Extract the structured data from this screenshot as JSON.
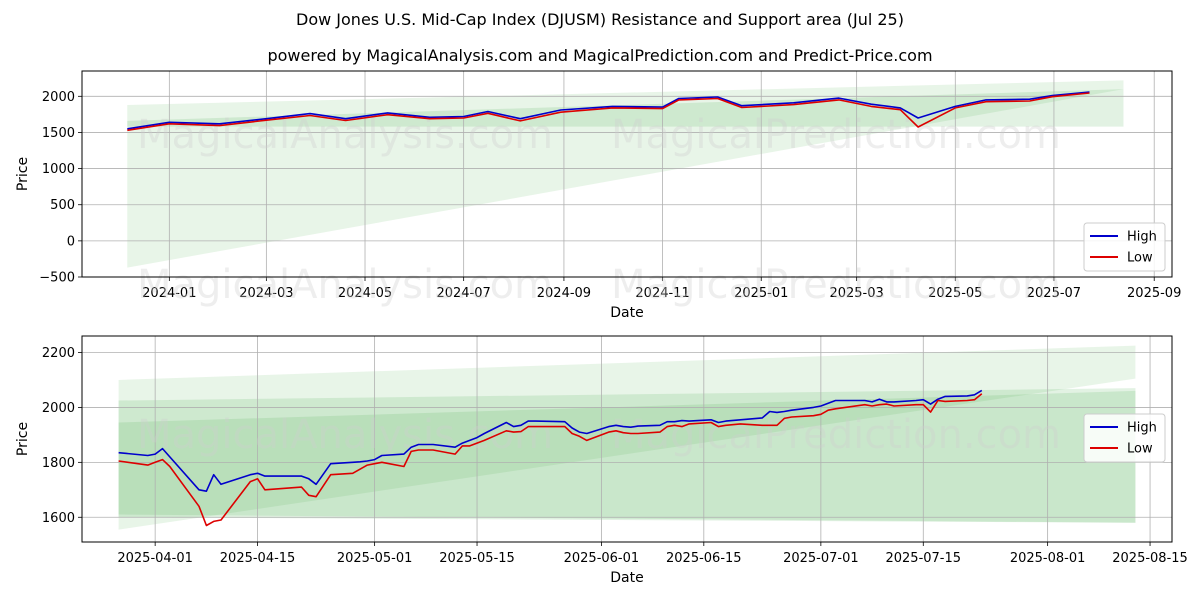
{
  "title": "Dow Jones U.S. Mid-Cap Index (DJUSM) Resistance and Support area (Jul 25)",
  "subtitle": "powered by MagicalAnalysis.com and MagicalPrediction.com and Predict-Price.com",
  "watermark": [
    "MagicalAnalysis.com",
    "MagicalPrediction.com"
  ],
  "colors": {
    "high": "#0000cc",
    "low": "#dd0000",
    "band": "#4caf50"
  },
  "chart_data": [
    {
      "type": "line",
      "xlabel": "Date",
      "ylabel": "Price",
      "x_ticks": [
        "2024-01",
        "2024-03",
        "2024-05",
        "2024-07",
        "2024-09",
        "2024-11",
        "2025-01",
        "2025-03",
        "2025-05",
        "2025-07",
        "2025-09"
      ],
      "y_ticks": [
        "−500",
        "0",
        "500",
        "1000",
        "1500",
        "2000"
      ],
      "ylim": [
        -500,
        2350
      ],
      "xlim": [
        "2023-11-08",
        "2025-09-12"
      ],
      "legend": "bottom-right",
      "grid": true,
      "bands": [
        {
          "x": [
            "2023-12-06",
            "2025-08-13"
          ],
          "upper": [
            1880,
            2220
          ],
          "lower": [
            -370,
            2100
          ]
        },
        {
          "x": [
            "2023-12-06",
            "2025-08-13"
          ],
          "upper": [
            1660,
            2100
          ],
          "lower": [
            1580,
            1580
          ]
        }
      ],
      "series": [
        {
          "name": "High",
          "x": [
            "2023-12-06",
            "2024-01-01",
            "2024-02-01",
            "2024-03-01",
            "2024-03-28",
            "2024-04-19",
            "2024-05-15",
            "2024-06-10",
            "2024-07-01",
            "2024-07-16",
            "2024-08-05",
            "2024-08-30",
            "2024-10-01",
            "2024-11-01",
            "2024-11-11",
            "2024-12-05",
            "2024-12-20",
            "2025-01-21",
            "2025-02-18",
            "2025-03-10",
            "2025-03-28",
            "2025-04-08",
            "2025-05-01",
            "2025-05-20",
            "2025-06-16",
            "2025-06-30",
            "2025-07-23"
          ],
          "values": [
            1550,
            1640,
            1620,
            1690,
            1760,
            1690,
            1770,
            1710,
            1720,
            1790,
            1690,
            1810,
            1860,
            1850,
            1970,
            1990,
            1870,
            1910,
            1975,
            1890,
            1840,
            1700,
            1860,
            1950,
            1960,
            2010,
            2060
          ]
        },
        {
          "name": "Low",
          "x": [
            "2023-12-06",
            "2024-01-01",
            "2024-02-01",
            "2024-03-01",
            "2024-03-28",
            "2024-04-19",
            "2024-05-15",
            "2024-06-10",
            "2024-07-01",
            "2024-07-16",
            "2024-08-05",
            "2024-08-30",
            "2024-10-01",
            "2024-11-01",
            "2024-11-11",
            "2024-12-05",
            "2024-12-20",
            "2025-01-21",
            "2025-02-18",
            "2025-03-10",
            "2025-03-28",
            "2025-04-08",
            "2025-05-01",
            "2025-05-20",
            "2025-06-16",
            "2025-06-30",
            "2025-07-23"
          ],
          "values": [
            1530,
            1620,
            1595,
            1670,
            1735,
            1665,
            1745,
            1690,
            1700,
            1765,
            1660,
            1780,
            1840,
            1830,
            1950,
            1970,
            1845,
            1885,
            1950,
            1860,
            1815,
            1575,
            1840,
            1925,
            1935,
            1995,
            2045
          ]
        }
      ]
    },
    {
      "type": "line",
      "xlabel": "Date",
      "ylabel": "Price",
      "x_ticks": [
        "2025-04-01",
        "2025-04-15",
        "2025-05-01",
        "2025-05-15",
        "2025-06-01",
        "2025-06-15",
        "2025-07-01",
        "2025-07-15",
        "2025-08-01",
        "2025-08-15"
      ],
      "y_ticks": [
        "1600",
        "1800",
        "2000",
        "2200"
      ],
      "ylim": [
        1510,
        2260
      ],
      "xlim": [
        "2025-03-22",
        "2025-08-18"
      ],
      "legend": "center-right",
      "grid": true,
      "bands": [
        {
          "x": [
            "2025-03-27",
            "2025-08-13"
          ],
          "upper": [
            2100,
            2225
          ],
          "lower": [
            1555,
            2105
          ]
        },
        {
          "x": [
            "2025-03-27",
            "2025-08-13"
          ],
          "upper": [
            2025,
            2070
          ],
          "lower": [
            1610,
            1580
          ]
        },
        {
          "x": [
            "2025-03-27",
            "2025-08-13"
          ],
          "upper": [
            1945,
            2060
          ],
          "lower": [
            1600,
            1580
          ]
        }
      ],
      "series": [
        {
          "name": "High",
          "x": [
            "2025-03-27",
            "2025-03-31",
            "2025-04-01",
            "2025-04-02",
            "2025-04-03",
            "2025-04-07",
            "2025-04-08",
            "2025-04-09",
            "2025-04-10",
            "2025-04-14",
            "2025-04-15",
            "2025-04-16",
            "2025-04-21",
            "2025-04-22",
            "2025-04-23",
            "2025-04-25",
            "2025-04-28",
            "2025-04-29",
            "2025-04-30",
            "2025-05-01",
            "2025-05-02",
            "2025-05-05",
            "2025-05-06",
            "2025-05-07",
            "2025-05-08",
            "2025-05-09",
            "2025-05-12",
            "2025-05-13",
            "2025-05-14",
            "2025-05-15",
            "2025-05-16",
            "2025-05-19",
            "2025-05-20",
            "2025-05-21",
            "2025-05-22",
            "2025-05-23",
            "2025-05-27",
            "2025-05-28",
            "2025-05-29",
            "2025-05-30",
            "2025-06-02",
            "2025-06-03",
            "2025-06-04",
            "2025-06-05",
            "2025-06-06",
            "2025-06-09",
            "2025-06-10",
            "2025-06-11",
            "2025-06-12",
            "2025-06-13",
            "2025-06-16",
            "2025-06-17",
            "2025-06-18",
            "2025-06-20",
            "2025-06-23",
            "2025-06-24",
            "2025-06-25",
            "2025-06-26",
            "2025-06-27",
            "2025-06-30",
            "2025-07-01",
            "2025-07-02",
            "2025-07-03",
            "2025-07-07",
            "2025-07-08",
            "2025-07-09",
            "2025-07-10",
            "2025-07-11",
            "2025-07-14",
            "2025-07-15",
            "2025-07-16",
            "2025-07-17",
            "2025-07-18",
            "2025-07-21",
            "2025-07-22",
            "2025-07-23"
          ],
          "values": [
            1835,
            1825,
            1830,
            1850,
            1820,
            1700,
            1695,
            1755,
            1720,
            1755,
            1760,
            1750,
            1750,
            1740,
            1720,
            1795,
            1800,
            1802,
            1805,
            1810,
            1825,
            1830,
            1855,
            1865,
            1865,
            1865,
            1855,
            1870,
            1880,
            1890,
            1905,
            1945,
            1930,
            1935,
            1950,
            1950,
            1948,
            1925,
            1910,
            1905,
            1930,
            1935,
            1930,
            1928,
            1932,
            1935,
            1948,
            1948,
            1952,
            1950,
            1955,
            1945,
            1950,
            1955,
            1962,
            1985,
            1982,
            1985,
            1990,
            2000,
            2005,
            2015,
            2025,
            2025,
            2020,
            2030,
            2020,
            2020,
            2025,
            2028,
            2012,
            2030,
            2040,
            2042,
            2046,
            2062
          ]
        },
        {
          "name": "Low",
          "x": [
            "2025-03-27",
            "2025-03-31",
            "2025-04-01",
            "2025-04-02",
            "2025-04-03",
            "2025-04-07",
            "2025-04-08",
            "2025-04-09",
            "2025-04-10",
            "2025-04-14",
            "2025-04-15",
            "2025-04-16",
            "2025-04-21",
            "2025-04-22",
            "2025-04-23",
            "2025-04-25",
            "2025-04-28",
            "2025-04-29",
            "2025-04-30",
            "2025-05-01",
            "2025-05-02",
            "2025-05-05",
            "2025-05-06",
            "2025-05-07",
            "2025-05-08",
            "2025-05-09",
            "2025-05-12",
            "2025-05-13",
            "2025-05-14",
            "2025-05-15",
            "2025-05-16",
            "2025-05-19",
            "2025-05-20",
            "2025-05-21",
            "2025-05-22",
            "2025-05-23",
            "2025-05-27",
            "2025-05-28",
            "2025-05-29",
            "2025-05-30",
            "2025-06-02",
            "2025-06-03",
            "2025-06-04",
            "2025-06-05",
            "2025-06-06",
            "2025-06-09",
            "2025-06-10",
            "2025-06-11",
            "2025-06-12",
            "2025-06-13",
            "2025-06-16",
            "2025-06-17",
            "2025-06-18",
            "2025-06-20",
            "2025-06-23",
            "2025-06-24",
            "2025-06-25",
            "2025-06-26",
            "2025-06-27",
            "2025-06-30",
            "2025-07-01",
            "2025-07-02",
            "2025-07-03",
            "2025-07-07",
            "2025-07-08",
            "2025-07-09",
            "2025-07-10",
            "2025-07-11",
            "2025-07-14",
            "2025-07-15",
            "2025-07-16",
            "2025-07-17",
            "2025-07-18",
            "2025-07-21",
            "2025-07-22",
            "2025-07-23"
          ],
          "values": [
            1805,
            1790,
            1800,
            1810,
            1785,
            1640,
            1570,
            1585,
            1590,
            1730,
            1740,
            1700,
            1710,
            1680,
            1675,
            1755,
            1760,
            1775,
            1790,
            1795,
            1800,
            1785,
            1840,
            1845,
            1845,
            1845,
            1830,
            1860,
            1860,
            1870,
            1880,
            1915,
            1910,
            1912,
            1930,
            1930,
            1930,
            1905,
            1895,
            1880,
            1910,
            1915,
            1908,
            1905,
            1905,
            1910,
            1930,
            1935,
            1930,
            1940,
            1945,
            1930,
            1935,
            1940,
            1935,
            1935,
            1935,
            1960,
            1965,
            1970,
            1975,
            1990,
            1995,
            2010,
            2005,
            2010,
            2012,
            2005,
            2010,
            2010,
            1983,
            2025,
            2022,
            2025,
            2028,
            2050
          ]
        }
      ]
    }
  ]
}
